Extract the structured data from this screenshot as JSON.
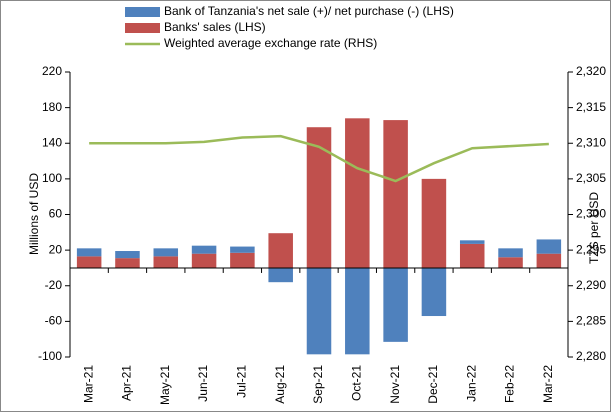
{
  "chart_data": {
    "type": "bar-line",
    "categories": [
      "Mar-21",
      "Apr-21",
      "May-21",
      "Jun-21",
      "Jul-21",
      "Aug-21",
      "Sep-21",
      "Oct-21",
      "Nov-21",
      "Dec-21",
      "Jan-22",
      "Feb-22",
      "Mar-22"
    ],
    "series": [
      {
        "name": "Banks' sales (LHS)",
        "color": "#c0504d",
        "type": "bar",
        "values": [
          13,
          11,
          13,
          16,
          17,
          39,
          158,
          168,
          166,
          100,
          27,
          12,
          16
        ]
      },
      {
        "name": "Bank of Tanzania's net sale (+)/ net purchase (-) (LHS)",
        "color": "#4f81bd",
        "type": "bar",
        "values": [
          9,
          8,
          9,
          9,
          7,
          -16,
          -97,
          -97,
          -83,
          -54,
          4,
          10,
          16
        ]
      },
      {
        "name": "Weighted average exchange rate (RHS)",
        "color": "#9bbb59",
        "type": "line",
        "axis": "y2",
        "values": [
          2310,
          2310,
          2310,
          2310.2,
          2310.8,
          2311,
          2309.5,
          2306.5,
          2304.7,
          2307.2,
          2309.3,
          2309.6,
          2309.9
        ]
      }
    ],
    "ylabel": "Millions of USD",
    "y2label": "TZS per USD",
    "ylim": [
      -100,
      220
    ],
    "yticks": [
      -100,
      -60,
      -20,
      20,
      60,
      100,
      140,
      180,
      220
    ],
    "y2lim": [
      2280,
      2320
    ],
    "y2ticks": [
      {
        "value": 2280,
        "label": "2,280"
      },
      {
        "value": 2285,
        "label": "2,285"
      },
      {
        "value": 2290,
        "label": "2,290"
      },
      {
        "value": 2295,
        "label": "2,295"
      },
      {
        "value": 2300,
        "label": "2,300"
      },
      {
        "value": 2305,
        "label": "2,305"
      },
      {
        "value": 2310,
        "label": "2,310"
      },
      {
        "value": 2315,
        "label": "2,315"
      },
      {
        "value": 2320,
        "label": "2,320"
      }
    ],
    "legend_order": [
      1,
      0,
      2
    ]
  }
}
